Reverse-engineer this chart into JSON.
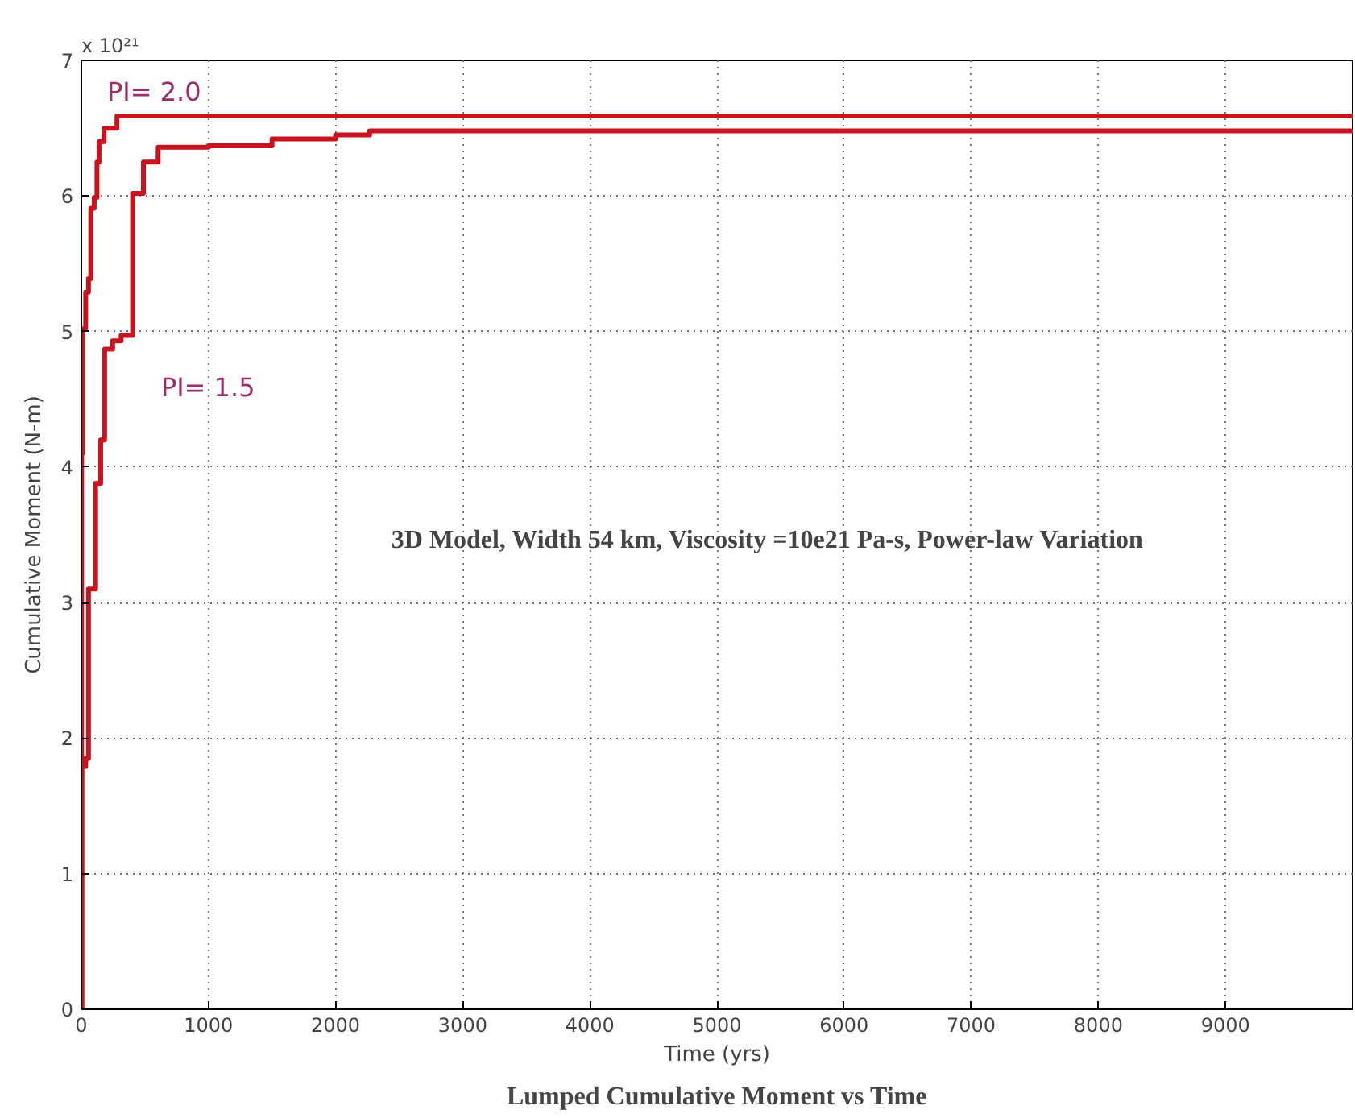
{
  "chart_data": {
    "type": "step",
    "title": "Lumped Cumulative Moment vs Time",
    "xlabel": "Time (yrs)",
    "ylabel": "Cumulative Moment (N-m)",
    "xlim": [
      0,
      10000
    ],
    "ylim": [
      0,
      7
    ],
    "xticks": [
      0,
      1000,
      2000,
      3000,
      4000,
      5000,
      6000,
      7000,
      8000,
      9000
    ],
    "yticks": [
      0,
      1,
      2,
      3,
      4,
      5,
      6,
      7
    ],
    "grid": true,
    "line_style": "solid",
    "marker": "none",
    "series": [
      {
        "name": "PI= 2.0",
        "color": "#c8141e",
        "x": [
          0,
          2,
          10,
          34,
          56,
          74,
          101,
          123,
          139,
          179,
          280,
          10000
        ],
        "values": [
          0,
          4.1,
          5.02,
          5.29,
          5.39,
          5.91,
          5.99,
          6.25,
          6.4,
          6.5,
          6.59,
          6.59
        ]
      },
      {
        "name": "PI= 1.5",
        "color": "#c8141e",
        "x": [
          0,
          4,
          34,
          56,
          112,
          152,
          183,
          246,
          313,
          403,
          488,
          604,
          1000,
          1500,
          2000,
          2268,
          10000
        ],
        "values": [
          0,
          1.79,
          1.85,
          3.1,
          3.88,
          4.2,
          4.87,
          4.93,
          4.97,
          6.02,
          6.25,
          6.36,
          6.37,
          6.42,
          6.45,
          6.48,
          6.48
        ]
      }
    ],
    "annotations": [
      "x 10²¹",
      "3D Model, Width 54 km, Viscosity =10e21 Pa-s, Power-law Variation"
    ]
  }
}
